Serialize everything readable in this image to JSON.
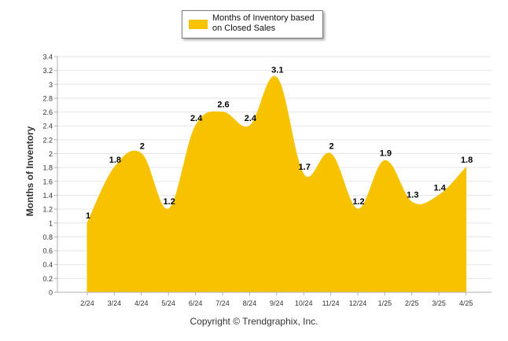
{
  "chart_data": {
    "type": "area",
    "categories": [
      "2/24",
      "3/24",
      "4/24",
      "5/24",
      "6/24",
      "7/24",
      "8/24",
      "9/24",
      "10/24",
      "11/24",
      "12/24",
      "1/25",
      "2/25",
      "3/25",
      "4/25"
    ],
    "series": [
      {
        "name": "Months of Inventory based on Closed Sales",
        "values": [
          1,
          1.8,
          2,
          1.2,
          2.4,
          2.6,
          2.4,
          3.1,
          1.7,
          2,
          1.2,
          1.9,
          1.3,
          1.4,
          1.8
        ],
        "data_labels": [
          "1",
          "1.8",
          "2",
          "1.2",
          "2.4",
          "2.6",
          "2.4",
          "3.1",
          "1.7",
          "2",
          "1.2",
          "1.9",
          "1.3",
          "1.4",
          "1.8"
        ],
        "color": "#F7C200"
      }
    ],
    "ylabel": "Months of Inventory",
    "ylim": [
      0,
      3.4
    ],
    "y_ticks": [
      "0",
      "0.2",
      "0.4",
      "0.6",
      "0.8",
      "1",
      "1.2",
      "1.4",
      "1.6",
      "1.8",
      "2",
      "2.2",
      "2.4",
      "2.6",
      "2.8",
      "3",
      "3.2",
      "3.4"
    ],
    "grid": true,
    "legend": {
      "position": "top-center",
      "label": "Months of Inventory based on Closed Sales"
    }
  },
  "footer": {
    "copyright": "Copyright © Trendgraphix, Inc."
  },
  "colors": {
    "fill": "#F7C200",
    "grid": "#e6e6e6",
    "axis": "#b0b0b0",
    "text": "#333333"
  }
}
